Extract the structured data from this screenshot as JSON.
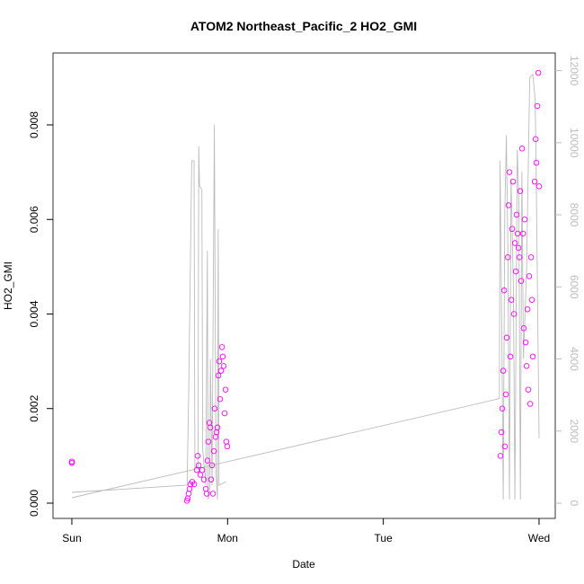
{
  "chart_data": {
    "type": "scatter",
    "title": "ATOM2 Northeast_Pacific_2 HO2_GMI",
    "x_label": "Date",
    "y_label": "HO2_GMI",
    "xlim": [
      -0.121,
      3.104
    ],
    "xticks": [
      {
        "value": 0,
        "label": "Sun"
      },
      {
        "value": 1,
        "label": "Mon"
      },
      {
        "value": 2,
        "label": "Tue"
      },
      {
        "value": 3,
        "label": "Wed"
      }
    ],
    "ylim": [
      -0.000323,
      0.00952
    ],
    "yticks": [
      {
        "value": 0,
        "label": "0.000"
      },
      0.002,
      0.004,
      0.006,
      0.008
    ],
    "y2lim": [
      -423,
      12488
    ],
    "y2ticks": [
      0,
      2000,
      4000,
      6000,
      8000,
      10000,
      12000
    ],
    "series": [
      {
        "type": "scatter",
        "color": "#ff00ff",
        "x": [
          0,
          0,
          0.739,
          0.744,
          0.75,
          0.756,
          0.762,
          0.773,
          0.785,
          0.802,
          0.808,
          0.814,
          0.825,
          0.837,
          0.848,
          0.86,
          0.866,
          0.871,
          0.877,
          0.883,
          0.889,
          0.894,
          0.9,
          0.906,
          0.912,
          0.917,
          0.923,
          0.929,
          0.935,
          0.941,
          0.946,
          0.952,
          0.958,
          0.964,
          0.969,
          0.975,
          0.981,
          0.987,
          0.992,
          0.998,
          2.752,
          2.758,
          2.764,
          2.77,
          2.776,
          2.781,
          2.787,
          2.793,
          2.799,
          2.804,
          2.81,
          2.816,
          2.822,
          2.827,
          2.833,
          2.839,
          2.845,
          2.851,
          2.856,
          2.862,
          2.868,
          2.874,
          2.879,
          2.885,
          2.891,
          2.897,
          2.902,
          2.908,
          2.914,
          2.92,
          2.926,
          2.931,
          2.937,
          2.943,
          2.949,
          2.954,
          2.96,
          2.972,
          2.978,
          2.983,
          2.989,
          2.995,
          3.0
        ],
        "values": [
          0.00085,
          0.00088,
          5e-05,
          0.0001,
          0.0002,
          0.0003,
          0.0004,
          0.00045,
          0.0004,
          0.0007,
          0.001,
          0.0008,
          0.0006,
          0.0007,
          0.0005,
          0.0003,
          0.0002,
          0.0009,
          0.0013,
          0.0017,
          0.0016,
          0.0005,
          0.0008,
          0.0002,
          0.0011,
          0.002,
          0.0014,
          0.0015,
          0.0016,
          0.0027,
          0.003,
          0.0022,
          0.0028,
          0.0033,
          0.0031,
          0.0029,
          0.0019,
          0.0024,
          0.0013,
          0.0012,
          0.001,
          0.0015,
          0.002,
          0.0028,
          0.0045,
          0.0012,
          0.0023,
          0.0035,
          0.0052,
          0.0063,
          0.007,
          0.0031,
          0.0043,
          0.0058,
          0.0068,
          0.004,
          0.0055,
          0.0049,
          0.0061,
          0.0057,
          0.0054,
          0.0052,
          0.0066,
          0.0047,
          0.0075,
          0.0057,
          0.0037,
          0.006,
          0.0034,
          0.0029,
          0.0041,
          0.0024,
          0.0048,
          0.0021,
          0.0052,
          0.0043,
          0.0031,
          0.0068,
          0.0077,
          0.0072,
          0.0084,
          0.0091,
          0.0067
        ]
      },
      {
        "type": "line",
        "color": "#bbbbbb",
        "axis": "y2",
        "x": [
          0,
          0.74,
          0.75,
          0.77,
          0.785,
          0.79,
          0.81,
          0.815,
          0.82,
          0.835,
          0.84,
          0.86,
          0.87,
          0.875,
          0.885,
          0.89,
          0.9,
          0.915,
          0.925,
          0.935,
          0.94,
          0.945,
          0.99,
          1.0,
          0,
          2.745,
          2.75,
          2.76,
          2.77,
          2.78,
          2.79,
          2.8,
          2.81,
          2.82,
          2.835,
          2.845,
          2.86,
          2.87,
          2.88,
          2.89,
          2.9,
          2.92,
          2.94,
          2.96,
          2.975,
          2.98,
          3.0
        ],
        "values": [
          300,
          500,
          3000,
          9500,
          9500,
          1000,
          1000,
          9900,
          8800,
          8700,
          1500,
          500,
          7000,
          100,
          300,
          4000,
          500,
          10500,
          1000,
          100,
          7600,
          500,
          600,
          null,
          150,
          2900,
          9500,
          5000,
          100,
          8000,
          10200,
          7000,
          100,
          9000,
          6000,
          100,
          9800,
          8500,
          100,
          9200,
          4000,
          6500,
          11800,
          11900,
          11200,
          9800,
          1800
        ]
      }
    ]
  }
}
